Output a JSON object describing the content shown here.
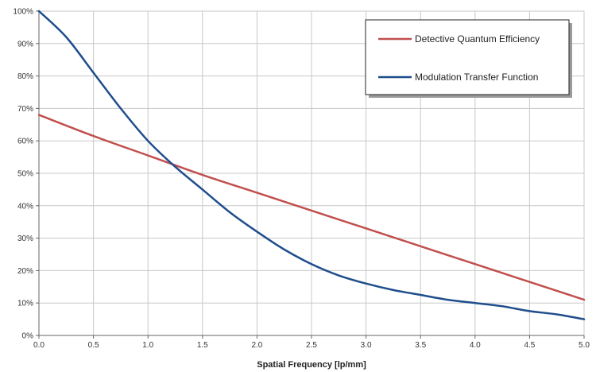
{
  "chart_data": {
    "type": "line",
    "title": "",
    "xlabel": "Spatial Frequency [lp/mm]",
    "ylabel": "",
    "xlim": [
      0,
      5
    ],
    "ylim": [
      0,
      100
    ],
    "x_ticks": [
      "0.0",
      "0.5",
      "1.0",
      "1.5",
      "2.0",
      "2.5",
      "3.0",
      "3.5",
      "4.0",
      "4.5",
      "5.0"
    ],
    "y_ticks": [
      "0%",
      "10%",
      "20%",
      "30%",
      "40%",
      "50%",
      "60%",
      "70%",
      "80%",
      "90%",
      "100%"
    ],
    "y_unit": "%",
    "grid": true,
    "legend_position": "top-right",
    "series": [
      {
        "name": "Detective Quantum Efficiency",
        "color": "#c0504d",
        "x": [
          0.0,
          0.5,
          1.0,
          1.5,
          2.0,
          2.5,
          3.0,
          3.5,
          4.0,
          4.5,
          5.0
        ],
        "y": [
          68,
          61.5,
          55.5,
          49.5,
          44,
          38.5,
          33,
          27.5,
          22,
          16.5,
          11
        ]
      },
      {
        "name": "Modulation Transfer Function",
        "color": "#1f4e8c",
        "x": [
          0.0,
          0.25,
          0.5,
          0.75,
          1.0,
          1.25,
          1.5,
          1.75,
          2.0,
          2.25,
          2.5,
          2.75,
          3.0,
          3.25,
          3.5,
          3.75,
          4.0,
          4.25,
          4.5,
          4.75,
          5.0
        ],
        "y": [
          100,
          92,
          81,
          70,
          60,
          52,
          45,
          38,
          32,
          26.5,
          22,
          18.5,
          16,
          14,
          12.5,
          11,
          10,
          9,
          7.5,
          6.5,
          5
        ]
      }
    ]
  }
}
